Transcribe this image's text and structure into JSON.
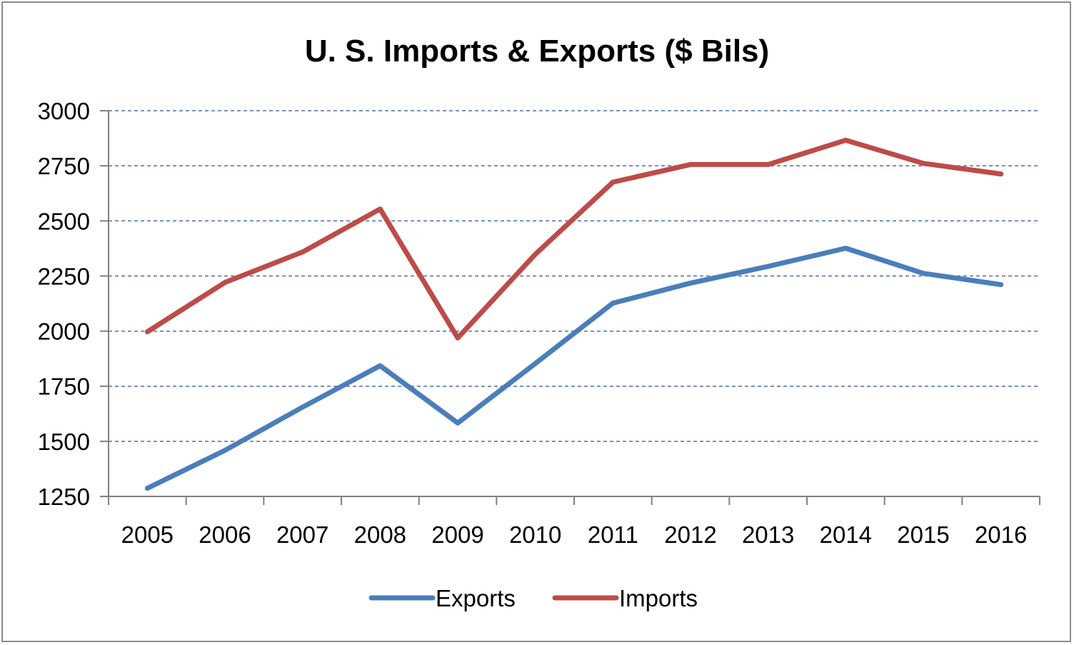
{
  "chart_data": {
    "type": "line",
    "title": "U. S. Imports & Exports ($ Bils)",
    "xlabel": "",
    "ylabel": "",
    "categories": [
      "2005",
      "2006",
      "2007",
      "2008",
      "2009",
      "2010",
      "2011",
      "2012",
      "2013",
      "2014",
      "2015",
      "2016"
    ],
    "ylim": [
      1250,
      3000
    ],
    "yticks": [
      1250,
      1500,
      1750,
      2000,
      2250,
      2500,
      2750,
      3000
    ],
    "grid": true,
    "legend_position": "bottom",
    "series": [
      {
        "name": "Exports",
        "color": "#4a7ebb",
        "values": [
          1287,
          1459,
          1655,
          1843,
          1583,
          1853,
          2127,
          2218,
          2294,
          2376,
          2262,
          2211
        ]
      },
      {
        "name": "Imports",
        "color": "#be4b48",
        "values": [
          1997,
          2221,
          2359,
          2554,
          1969,
          2349,
          2676,
          2756,
          2756,
          2866,
          2761,
          2713
        ]
      }
    ]
  }
}
